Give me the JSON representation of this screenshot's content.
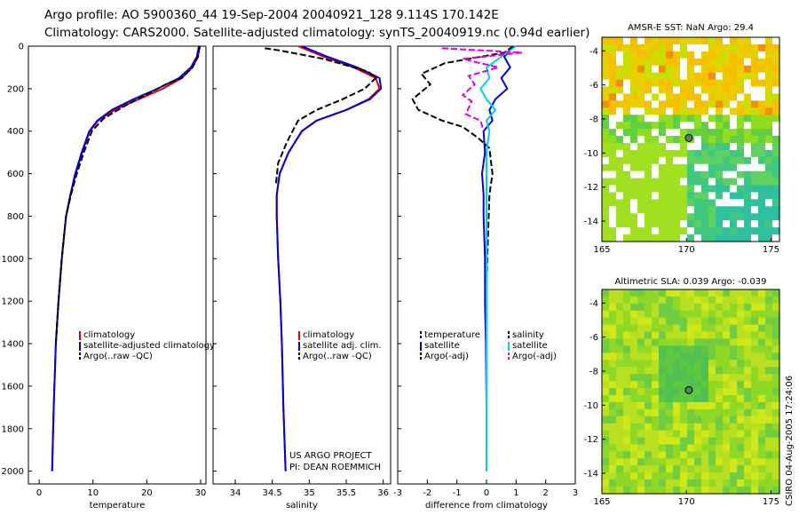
{
  "header": {
    "line1": "Argo profile: AO 5900360_44 19-Sep-2004 20040921_128 9.114S 170.142E",
    "line2": "Climatology: CARS2000. Satellite-adjusted climatology: synTS_20040919.nc (0.94d earlier)"
  },
  "stamp": {
    "project": "US ARGO PROJECT",
    "pi": "PI: DEAN ROEMMICH",
    "csiro": "CSIRO 04-Aug-2005 17:24:06"
  },
  "chart_data": [
    {
      "type": "line",
      "name": "temperature",
      "xlabel": "temperature",
      "ylabel": "",
      "xlim": [
        -2,
        31
      ],
      "ylim": [
        2060,
        0
      ],
      "xticks": [
        0,
        10,
        20,
        30
      ],
      "yticks": [
        0,
        200,
        400,
        600,
        800,
        1000,
        1200,
        1400,
        1600,
        1800,
        2000
      ],
      "legend": [
        "climatology",
        "satellite-adjusted climatology",
        "Argo(..raw -QC)"
      ],
      "series": [
        {
          "name": "climatology",
          "color": "#e00000",
          "x": [
            29.9,
            29.5,
            28.5,
            26.5,
            23.0,
            18.5,
            14.0,
            11.0,
            9.4,
            8.0,
            6.8,
            5.8,
            5.0,
            4.2,
            3.6,
            3.1,
            2.7,
            2.4
          ],
          "y": [
            0,
            50,
            100,
            150,
            200,
            250,
            300,
            350,
            400,
            500,
            600,
            700,
            800,
            1000,
            1200,
            1400,
            1700,
            2000
          ]
        },
        {
          "name": "satellite-adjusted climatology",
          "color": "#0000e0",
          "x": [
            29.7,
            29.3,
            28.2,
            26.0,
            22.0,
            17.5,
            13.5,
            10.8,
            9.3,
            7.9,
            6.7,
            5.8,
            5.0,
            4.2,
            3.6,
            3.1,
            2.7,
            2.4
          ],
          "y": [
            0,
            50,
            100,
            150,
            200,
            250,
            300,
            350,
            400,
            500,
            600,
            700,
            800,
            1000,
            1200,
            1400,
            1700,
            2000
          ]
        },
        {
          "name": "Argo(..raw -QC)",
          "color": "#000000",
          "x": [
            29.8,
            29.5,
            28.5,
            26.5,
            23.5,
            20.5,
            16.0,
            12.0,
            9.8,
            8.3,
            7.0,
            5.9,
            5.0,
            4.2,
            3.6,
            3.1
          ],
          "y": [
            0,
            50,
            100,
            150,
            180,
            220,
            280,
            340,
            400,
            500,
            600,
            700,
            800,
            1000,
            1200,
            1400
          ]
        }
      ]
    },
    {
      "type": "line",
      "name": "salinity",
      "xlabel": "salinity",
      "ylabel": "",
      "xlim": [
        33.7,
        36.1
      ],
      "ylim": [
        2060,
        0
      ],
      "xticks": [
        34,
        34.5,
        35,
        35.5,
        36
      ],
      "legend": [
        "climatology",
        "satellite adj. clim.",
        "Argo(..raw -QC)"
      ],
      "series": [
        {
          "name": "climatology",
          "color": "#e00000",
          "x": [
            34.85,
            35.2,
            35.6,
            35.9,
            35.95,
            35.8,
            35.5,
            35.1,
            34.9,
            34.72,
            34.6,
            34.56,
            34.56,
            34.58,
            34.61,
            34.63,
            34.65,
            34.68
          ],
          "y": [
            0,
            50,
            100,
            150,
            200,
            250,
            300,
            350,
            400,
            500,
            600,
            700,
            800,
            1000,
            1200,
            1400,
            1700,
            2000
          ]
        },
        {
          "name": "satellite adj. clim.",
          "color": "#0000e0",
          "x": [
            34.9,
            35.25,
            35.65,
            35.95,
            35.97,
            35.82,
            35.5,
            35.1,
            34.9,
            34.72,
            34.6,
            34.56,
            34.56,
            34.58,
            34.61,
            34.63,
            34.65,
            34.68
          ],
          "y": [
            0,
            50,
            100,
            150,
            200,
            250,
            300,
            350,
            400,
            500,
            600,
            700,
            800,
            1000,
            1200,
            1400,
            1700,
            2000
          ]
        },
        {
          "name": "Argo(..raw -QC)",
          "color": "#000000",
          "x": [
            34.4,
            34.6,
            35.2,
            35.8,
            35.9,
            35.75,
            35.45,
            35.1,
            34.85,
            34.7,
            34.58,
            34.55
          ],
          "y": [
            10,
            20,
            60,
            120,
            150,
            200,
            250,
            300,
            350,
            450,
            550,
            650
          ]
        }
      ]
    },
    {
      "type": "line",
      "name": "difference",
      "xlabel": "difference from climatology",
      "ylabel": "",
      "xlim": [
        -3,
        3
      ],
      "ylim": [
        2060,
        0
      ],
      "xticks": [
        -3,
        -2,
        -1,
        0,
        1,
        2,
        3
      ],
      "legend": [
        "temperature",
        "satellite",
        "Argo(-adj)",
        "salinity",
        "satellite",
        "Argo(-adj)"
      ],
      "series": [
        {
          "name": "temperature satellite",
          "color": "#0000e0",
          "x": [
            0.9,
            0.6,
            0.8,
            0.5,
            0.7,
            0.3,
            0.1,
            0.2,
            -0.1,
            -0.05,
            -0.15,
            -0.1,
            -0.1,
            -0.05,
            -0.05,
            -0.02,
            0.0,
            0.0
          ],
          "y": [
            0,
            50,
            100,
            150,
            200,
            250,
            300,
            350,
            400,
            500,
            600,
            700,
            800,
            1000,
            1200,
            1400,
            1700,
            2000
          ]
        },
        {
          "name": "temperature Argo(-adj)",
          "color": "#000000",
          "x": [
            0.9,
            0.6,
            -1.4,
            -2.2,
            -1.9,
            -2.5,
            -2.3,
            -1.5,
            -0.8,
            -0.3,
            0.1,
            0.2,
            0.1,
            0.05,
            0.0,
            0.0
          ],
          "y": [
            0,
            30,
            80,
            130,
            180,
            250,
            300,
            350,
            380,
            430,
            480,
            600,
            700,
            900,
            1100,
            1250
          ]
        },
        {
          "name": "salinity satellite",
          "color": "#00d0e8",
          "x": [
            1.0,
            0.5,
            0.0,
            0.1,
            -0.2,
            0.0,
            0.3,
            0.0,
            0.1,
            0.0,
            0.0,
            0.0,
            0.0,
            0.0,
            0.0,
            0.0,
            0.0,
            0.0
          ],
          "y": [
            0,
            50,
            100,
            150,
            200,
            250,
            300,
            350,
            400,
            500,
            600,
            700,
            800,
            1000,
            1200,
            1400,
            1700,
            2000
          ]
        },
        {
          "name": "salinity Argo(-adj)",
          "color": "#e000e0",
          "x": [
            -1.5,
            1.2,
            -0.8,
            0.4,
            -0.6,
            -0.4,
            -0.8,
            -0.5,
            -0.7,
            -0.2,
            -0.1
          ],
          "y": [
            10,
            30,
            60,
            100,
            140,
            180,
            230,
            260,
            320,
            350,
            400
          ]
        }
      ]
    }
  ],
  "maps": {
    "sst": {
      "title": "AMSR-E SST: NaN Argo: 29.4",
      "xticks": [
        "165",
        "170",
        "175"
      ],
      "yticks": [
        "-4",
        "-6",
        "-8",
        "-10",
        "-12",
        "-14"
      ]
    },
    "sla": {
      "title": "Altimetric SLA: 0.039 Argo: -0.039",
      "xticks": [
        "165",
        "170",
        "175"
      ],
      "yticks": [
        "-4",
        "-6",
        "-8",
        "-10",
        "-12",
        "-14"
      ]
    }
  },
  "colors": {
    "climatology": "#e00000",
    "satellite": "#0000e0",
    "argo": "#000000",
    "sal_satellite": "#00d0e8",
    "sal_argo": "#e000e0"
  }
}
